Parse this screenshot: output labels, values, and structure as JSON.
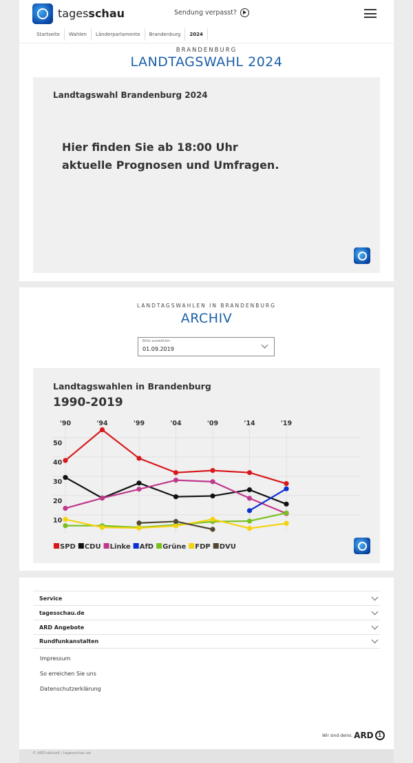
{
  "header": {
    "brand_light": "tages",
    "brand_bold": "schau",
    "missed": "Sendung verpasst?"
  },
  "breadcrumb": [
    "Startseite",
    "Wahlen",
    "Länderparlamente",
    "Brandenburg",
    "2024"
  ],
  "section1": {
    "kicker": "BRANDENBURG",
    "title": "LANDTAGSWAHL 2024",
    "box_title": "Landtagswahl Brandenburg 2024",
    "message_line1": "Hier finden Sie ab 18:00 Uhr",
    "message_line2": "aktuelle Prognosen und Umfragen."
  },
  "section2": {
    "kicker": "LANDTAGSWAHLEN IN BRANDENBURG",
    "title": "ARCHIV",
    "select_label": "Bitte auswählen",
    "select_value": "01.09.2019"
  },
  "chart_data": {
    "type": "line",
    "title": "Landtagswahlen in Brandenburg",
    "subtitle": "1990-2019",
    "categories": [
      "'90",
      "'94",
      "'99",
      "'04",
      "'09",
      "'14",
      "'19"
    ],
    "yticks": [
      10,
      20,
      30,
      40,
      50
    ],
    "ylim": [
      0,
      57
    ],
    "grid": true,
    "legend": "bottom-left",
    "series": [
      {
        "name": "SPD",
        "color": "#d7191c",
        "values": [
          38.2,
          54.1,
          39.3,
          31.9,
          33.0,
          31.9,
          26.2
        ]
      },
      {
        "name": "CDU",
        "color": "#111111",
        "values": [
          29.4,
          18.7,
          26.5,
          19.4,
          19.8,
          23.0,
          15.6
        ]
      },
      {
        "name": "Linke",
        "color": "#c0388c",
        "values": [
          13.4,
          18.7,
          23.3,
          28.0,
          27.2,
          18.6,
          10.7
        ]
      },
      {
        "name": "AfD",
        "color": "#0a2fd0",
        "values": [
          null,
          null,
          null,
          null,
          null,
          12.2,
          23.5
        ]
      },
      {
        "name": "Grüne",
        "color": "#78c01e",
        "values": [
          4.4,
          4.4,
          3.5,
          4.8,
          6.5,
          6.8,
          11.0
        ]
      },
      {
        "name": "FDP",
        "color": "#f5d20f",
        "values": [
          7.7,
          3.5,
          3.2,
          4.3,
          7.7,
          3.0,
          5.6
        ]
      },
      {
        "name": "DVU",
        "color": "#4f4730",
        "values": [
          null,
          null,
          5.8,
          6.6,
          null,
          null,
          null
        ],
        "extra": {
          "'09": 2.5
        }
      }
    ]
  },
  "footer": {
    "accordions": [
      "Service",
      "tagesschau.de",
      "ARD Angebote",
      "Rundfunkanstalten"
    ],
    "links": [
      "Impressum",
      "So erreichen Sie uns",
      "Datenschutzerklärung"
    ],
    "slogan": "Wir sind deins.",
    "ard": "ARD",
    "copyright": "© ARD-aktuell / tagesschau.de"
  }
}
